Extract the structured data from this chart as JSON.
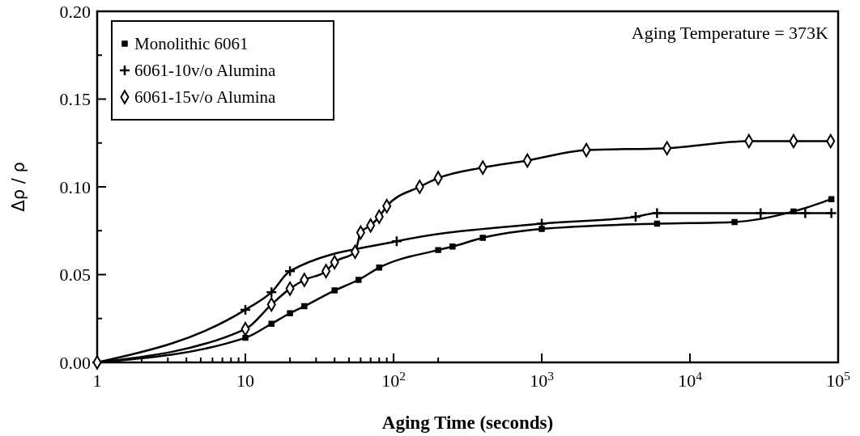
{
  "chart_data": {
    "type": "line",
    "xlabel": "Aging Time (seconds)",
    "ylabel": "Δρ / ρ",
    "log": "x",
    "legend": "top left",
    "grid": false,
    "annotations": [
      "Aging Temperature = 373K"
    ],
    "xlim": [
      1,
      100000
    ],
    "ylim": [
      0,
      0.2
    ],
    "xticks": [
      {
        "value": 1,
        "label": "1"
      },
      {
        "value": 2,
        "label": null
      },
      {
        "value": 3,
        "label": null
      },
      {
        "value": 4,
        "label": null
      },
      {
        "value": 5,
        "label": null
      },
      {
        "value": 6,
        "label": null
      },
      {
        "value": 7,
        "label": null
      },
      {
        "value": 8,
        "label": null
      },
      {
        "value": 9,
        "label": null
      },
      {
        "value": 10,
        "label": "10"
      },
      {
        "value": 20,
        "label": null
      },
      {
        "value": 30,
        "label": null
      },
      {
        "value": 40,
        "label": null
      },
      {
        "value": 50,
        "label": null
      },
      {
        "value": 60,
        "label": null
      },
      {
        "value": 70,
        "label": null
      },
      {
        "value": 80,
        "label": null
      },
      {
        "value": 90,
        "label": null
      },
      {
        "value": 100,
        "label": "10$^{2}$"
      },
      {
        "value": 200,
        "label": null
      },
      {
        "value": 1000,
        "label": "10$^{3}$"
      },
      {
        "value": 10000,
        "label": "10$^{4}$"
      },
      {
        "value": 100000,
        "label": "10$^{5}$"
      }
    ],
    "yticks": [
      {
        "value": 0,
        "label": "0.00"
      },
      {
        "value": 0.025,
        "label": null
      },
      {
        "value": 0.05,
        "label": "0.05"
      },
      {
        "value": 0.075,
        "label": null
      },
      {
        "value": 0.1,
        "label": "0.10"
      },
      {
        "value": 0.125,
        "label": null
      },
      {
        "value": 0.15,
        "label": "0.15"
      },
      {
        "value": 0.175,
        "label": null
      },
      {
        "value": 0.2,
        "label": "0.20"
      }
    ],
    "series": [
      {
        "name": "Monolithic 6061",
        "color": "#000000",
        "marker": "square",
        "x": [
          1,
          10,
          15,
          20,
          25,
          40,
          58,
          80,
          200,
          250,
          400,
          1000,
          6000,
          20000,
          50000,
          90000
        ],
        "values": [
          0,
          0.014,
          0.022,
          0.028,
          0.032,
          0.041,
          0.047,
          0.054,
          0.064,
          0.066,
          0.071,
          0.076,
          0.079,
          0.08,
          0.086,
          0.093
        ]
      },
      {
        "name": "6061-10v/o Alumina",
        "color": "#000000",
        "marker": "cross",
        "x": [
          1,
          10,
          15,
          20,
          105,
          1000,
          4300,
          6000,
          30000,
          60000,
          90000
        ],
        "values": [
          0,
          0.03,
          0.04,
          0.052,
          0.069,
          0.079,
          0.083,
          0.085,
          0.085,
          0.085,
          0.085
        ]
      },
      {
        "name": "6061-15v/o Alumina",
        "color": "#000000",
        "marker": "diamond",
        "x": [
          1,
          10,
          15,
          20,
          25,
          35,
          40,
          55,
          60,
          70,
          80,
          90,
          150,
          200,
          400,
          800,
          2000,
          7000,
          25000,
          50000,
          89000
        ],
        "values": [
          0,
          0.019,
          0.033,
          0.042,
          0.047,
          0.052,
          0.057,
          0.063,
          0.074,
          0.078,
          0.083,
          0.089,
          0.1,
          0.105,
          0.111,
          0.115,
          0.121,
          0.122,
          0.126,
          0.126,
          0.126
        ]
      }
    ]
  }
}
